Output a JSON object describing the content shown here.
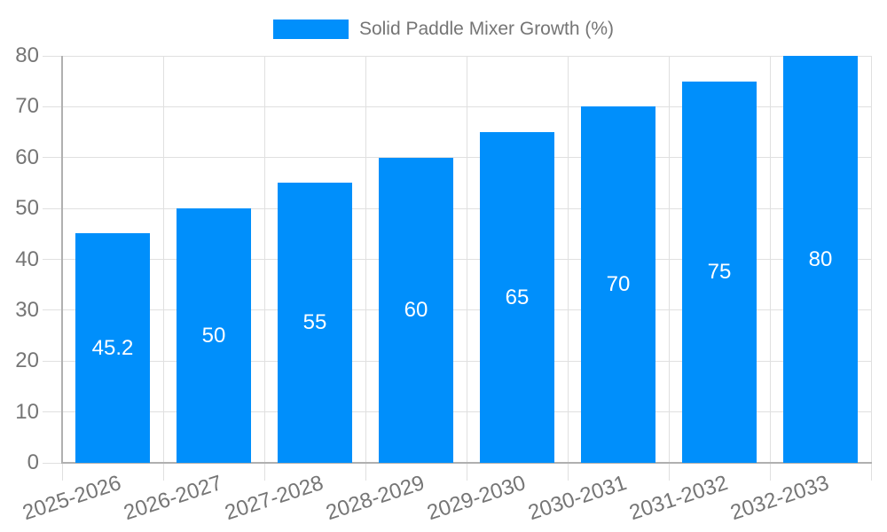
{
  "legend": {
    "label": "Solid Paddle Mixer Growth (%)"
  },
  "chart_data": {
    "type": "bar",
    "title": "",
    "series_name": "Solid Paddle Mixer Growth (%)",
    "categories": [
      "2025-2026",
      "2026-2027",
      "2027-2028",
      "2028-2029",
      "2029-2030",
      "2030-2031",
      "2031-2032",
      "2032-2033"
    ],
    "values": [
      45.2,
      50,
      55,
      60,
      65,
      70,
      75,
      80
    ],
    "value_labels": [
      "45.2",
      "50",
      "55",
      "60",
      "65",
      "70",
      "75",
      "80"
    ],
    "xlabel": "",
    "ylabel": "",
    "ylim": [
      0,
      80
    ],
    "yticks": [
      0,
      10,
      20,
      30,
      40,
      50,
      60,
      70,
      80
    ],
    "grid": true,
    "legend_position": "top"
  },
  "colors": {
    "bar": "#008FFB",
    "grid": "#e0e0e0",
    "axis": "#b0b0b0",
    "label": "#757575",
    "value_label": "#ffffff",
    "background": "#ffffff"
  }
}
